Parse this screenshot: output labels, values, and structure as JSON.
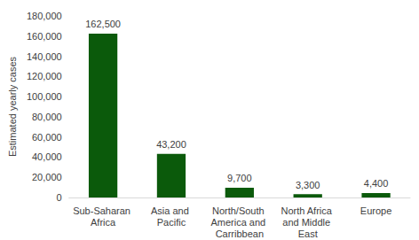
{
  "chart_data": {
    "type": "bar",
    "y_label": "Estimated yearly cases",
    "categories": [
      "Sub-Saharan Africa",
      "Asia and Pacific",
      "North/South America and Carribbean",
      "North Africa and Middle East",
      "Europe"
    ],
    "values": [
      162500,
      43200,
      9700,
      3300,
      4400
    ],
    "value_labels": [
      "162,500",
      "43,200",
      "9,700",
      "3,300",
      "4,400"
    ],
    "color": "#0b5a0b",
    "ylim": [
      0,
      180000
    ],
    "yticks": [
      0,
      {
        "value": 20000,
        "label": "20,000"
      },
      {
        "value": 40000,
        "label": "40,000"
      },
      {
        "value": 60000,
        "label": "60,000"
      },
      {
        "value": 80000,
        "label": "80,000"
      },
      {
        "value": 100000,
        "label": "100,000"
      },
      {
        "value": 120000,
        "label": "120,000"
      },
      {
        "value": 140000,
        "label": "140,000"
      },
      {
        "value": 160000,
        "label": "160,000"
      },
      {
        "value": 180000,
        "label": "180,000"
      }
    ],
    "grid": false,
    "data_labels": true
  }
}
